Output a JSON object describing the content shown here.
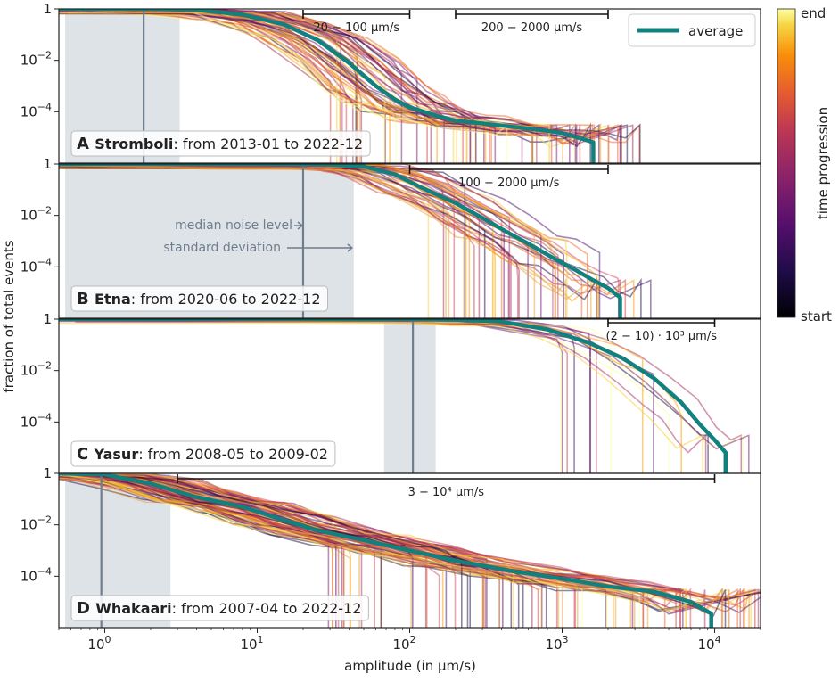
{
  "chart_data": {
    "type": "line",
    "x_scale": "log",
    "y_scale": "log",
    "xlim": [
      0.5,
      20000
    ],
    "ylim": [
      1e-06,
      1
    ],
    "xlabel": "amplitude (in µm/s)",
    "ylabel": "fraction of total events",
    "x_ticks": [
      {
        "value": 1,
        "label": "10",
        "exp": "0"
      },
      {
        "value": 10,
        "label": "10",
        "exp": "1"
      },
      {
        "value": 100,
        "label": "10",
        "exp": "2"
      },
      {
        "value": 1000,
        "label": "10",
        "exp": "3"
      },
      {
        "value": 10000,
        "label": "10",
        "exp": "4"
      }
    ],
    "y_ticks": [
      {
        "value": 1,
        "label": "1",
        "exp": ""
      },
      {
        "value": 0.01,
        "label": "10",
        "exp": "−2"
      },
      {
        "value": 0.0001,
        "label": "10",
        "exp": "−4"
      }
    ],
    "legend": {
      "label": "average",
      "color": "#12807d",
      "position": "top-right"
    },
    "colorbar": {
      "label": "time progression",
      "top": "end",
      "bottom": "start"
    },
    "annotations": {
      "median_label": "median noise level",
      "std_label": "standard deviation"
    },
    "panels": [
      {
        "letter": "A",
        "name": "Stromboli",
        "period": ": from 2013-01 to 2022-12",
        "noise_median": 1.8,
        "noise_band": [
          0.55,
          3.1
        ],
        "ranges": [
          {
            "from": 20,
            "to": 100,
            "label": "20 − 100 µm/s"
          },
          {
            "from": 200,
            "to": 2000,
            "label": "200 − 2000 µm/s"
          }
        ],
        "average": [
          [
            0.5,
            1
          ],
          [
            2,
            0.99
          ],
          [
            4,
            0.9
          ],
          [
            8,
            0.6
          ],
          [
            15,
            0.25
          ],
          [
            25,
            0.06
          ],
          [
            40,
            0.008
          ],
          [
            60,
            0.001
          ],
          [
            80,
            0.0003
          ],
          [
            100,
            0.00015
          ],
          [
            150,
            7e-05
          ],
          [
            200,
            4.5e-05
          ],
          [
            300,
            3.5e-05
          ],
          [
            500,
            2.5e-05
          ],
          [
            800,
            1.8e-05
          ],
          [
            1000,
            1.5e-05
          ],
          [
            1300,
            9.5e-06
          ],
          [
            1600,
            6.5e-06
          ]
        ]
      },
      {
        "letter": "B",
        "name": "Etna",
        "period": ": from 2020-06 to 2022-12",
        "noise_median": 20,
        "noise_band": [
          0.55,
          43
        ],
        "ranges": [
          {
            "from": 100,
            "to": 2000,
            "label": "100 − 2000 µm/s"
          }
        ],
        "average": [
          [
            0.5,
            1
          ],
          [
            10,
            0.99
          ],
          [
            30,
            0.95
          ],
          [
            50,
            0.8
          ],
          [
            80,
            0.4
          ],
          [
            120,
            0.12
          ],
          [
            200,
            0.03
          ],
          [
            300,
            0.008
          ],
          [
            450,
            0.002
          ],
          [
            600,
            0.0008
          ],
          [
            900,
            0.0002
          ],
          [
            1200,
            8e-05
          ],
          [
            1600,
            3e-05
          ],
          [
            2000,
            1.5e-05
          ],
          [
            2400,
            6.5e-06
          ]
        ]
      },
      {
        "letter": "C",
        "name": "Yasur",
        "period": ": from 2008-05 to 2009-02",
        "noise_median": 105,
        "noise_band": [
          68,
          148
        ],
        "ranges": [
          {
            "from": 2000,
            "to": 10000,
            "label": "(2 − 10) · 10³ µm/s"
          }
        ],
        "average": [
          [
            0.5,
            1
          ],
          [
            100,
            0.99
          ],
          [
            200,
            0.95
          ],
          [
            400,
            0.8
          ],
          [
            800,
            0.4
          ],
          [
            1500,
            0.12
          ],
          [
            2500,
            0.03
          ],
          [
            4000,
            0.005
          ],
          [
            6000,
            0.0006
          ],
          [
            8000,
            8e-05
          ],
          [
            10000,
            2e-05
          ],
          [
            11800,
            6.5e-06
          ]
        ]
      },
      {
        "letter": "D",
        "name": "Whakaari",
        "period": ": from 2007-04 to 2022-12",
        "noise_median": 0.95,
        "noise_band": [
          0.55,
          2.7
        ],
        "ranges": [
          {
            "from": 3,
            "to": 10000,
            "label": "3 − 10⁴ µm/s"
          }
        ],
        "average": [
          [
            0.5,
            1
          ],
          [
            1,
            0.9
          ],
          [
            2,
            0.4
          ],
          [
            4,
            0.12
          ],
          [
            8,
            0.05
          ],
          [
            15,
            0.015
          ],
          [
            25,
            0.006
          ],
          [
            50,
            0.0025
          ],
          [
            100,
            0.001
          ],
          [
            200,
            0.0004
          ],
          [
            500,
            0.00015
          ],
          [
            1000,
            8e-05
          ],
          [
            2000,
            4e-05
          ],
          [
            4000,
            2.5e-05
          ],
          [
            7000,
            1e-05
          ],
          [
            9500,
            3.5e-06
          ]
        ]
      }
    ]
  }
}
